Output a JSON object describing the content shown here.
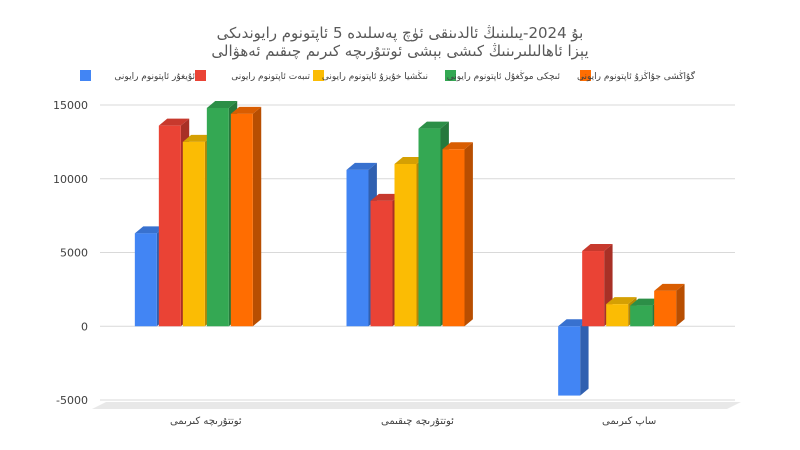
{
  "chart_data": {
    "type": "bar",
    "title": [
      "بۇ 2024-يىلىنىڭ ئالدىنقى ئۈچ پەسلىدە 5 ئاپتونوم رايوندىكى",
      "يېزا ئاھالىلىرىنىڭ كىشى بېشى ئوتتۇرىچە كىرىم چىقىم ئەھۋالى"
    ],
    "categories": [
      "ئوتتۇرىچە كىرىمى",
      "ئوتتۇرىچە چىقىمى",
      "ساپ كىرىمى"
    ],
    "series": [
      {
        "name": "ئۇيغۇر ئاپتونوم رايونى",
        "color": "#4285f4",
        "values": [
          6300,
          10600,
          -4700
        ]
      },
      {
        "name": "تىبەت ئاپتونوم رايونى",
        "color": "#ea4335",
        "values": [
          13600,
          8500,
          5100
        ]
      },
      {
        "name": "نىڭشيا خۇيزۇ ئاپتونوم رايونى",
        "color": "#fbbc04",
        "values": [
          12500,
          11000,
          1500
        ]
      },
      {
        "name": "ئىچكى موڭغۇل ئاپتونوم رايونى",
        "color": "#34a853",
        "values": [
          14800,
          13400,
          1400
        ]
      },
      {
        "name": "گۇاڭشى جۇاڭزۇ ئاپتونوم رايونى",
        "color": "#ff6d01",
        "values": [
          14400,
          12000,
          2400
        ]
      }
    ],
    "yticks": [
      "15000",
      "10000",
      "5000",
      "0",
      "-5000"
    ],
    "ylim": [
      -5000,
      15000
    ],
    "grid": true,
    "legend_position": "top"
  }
}
